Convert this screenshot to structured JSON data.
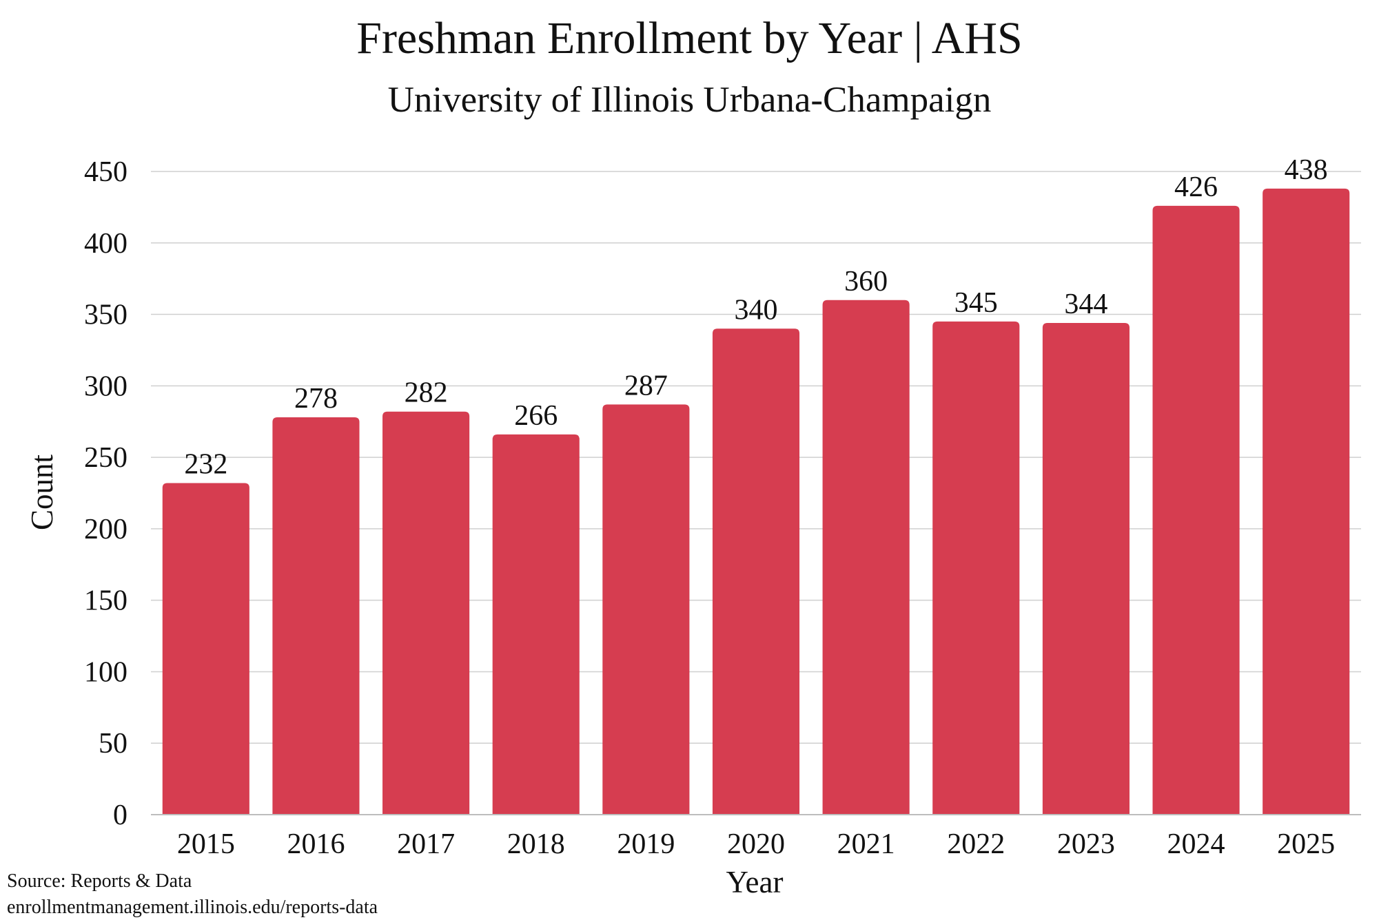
{
  "chart_data": {
    "type": "bar",
    "title": "Freshman Enrollment by Year | AHS",
    "subtitle": "University of Illinois Urbana-Champaign",
    "xlabel": "Year",
    "ylabel": "Count",
    "categories": [
      "2015",
      "2016",
      "2017",
      "2018",
      "2019",
      "2020",
      "2021",
      "2022",
      "2023",
      "2024",
      "2025"
    ],
    "values": [
      232,
      278,
      282,
      266,
      287,
      340,
      360,
      345,
      344,
      426,
      438
    ],
    "ylim": [
      0,
      450
    ],
    "yticks": [
      0,
      50,
      100,
      150,
      200,
      250,
      300,
      350,
      400,
      450
    ],
    "grid": "horizontal",
    "data_labels": true,
    "bar_color": "#d63d50",
    "grid_color": "#cfcfcf"
  },
  "footer": {
    "source": "Source: Reports & Data",
    "url": "enrollmentmanagement.illinois.edu/reports-data"
  }
}
